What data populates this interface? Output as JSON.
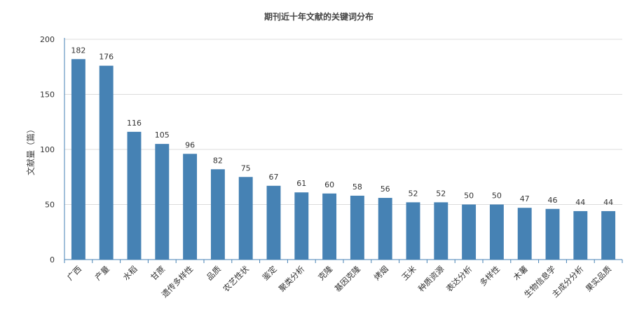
{
  "chart_data": {
    "type": "bar",
    "title": "期刊近十年文献的关键词分布",
    "xlabel": "",
    "ylabel": "文献量（篇）",
    "ylim": [
      0,
      200
    ],
    "yticks": [
      0,
      50,
      100,
      150,
      200
    ],
    "grid": true,
    "bar_color": "#4682b4",
    "categories": [
      "广西",
      "产量",
      "水稻",
      "甘蔗",
      "遗传多样性",
      "品质",
      "农艺性状",
      "鉴定",
      "聚类分析",
      "克隆",
      "基因克隆",
      "烤烟",
      "玉米",
      "种质资源",
      "表达分析",
      "多样性",
      "木薯",
      "生物信息学",
      "主成分分析",
      "果实品质"
    ],
    "values": [
      182,
      176,
      116,
      105,
      96,
      82,
      75,
      67,
      61,
      60,
      58,
      56,
      52,
      52,
      50,
      50,
      47,
      46,
      44,
      44
    ]
  }
}
